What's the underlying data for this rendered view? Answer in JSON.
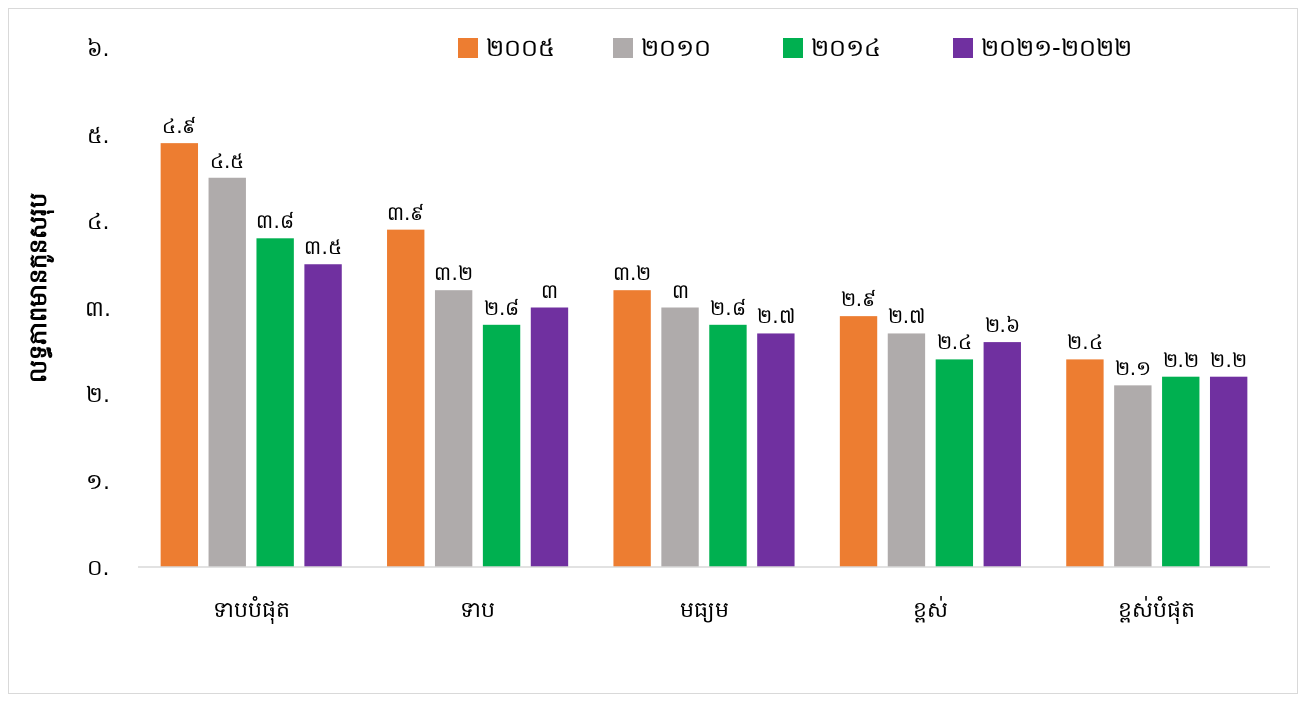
{
  "chart_data": {
    "type": "bar",
    "ylabel": "លទ្ធភាពមានកូនសរុប",
    "categories": [
      "ទាបបំផុត",
      "ទាប",
      "មធ្យម",
      "ខ្ពស់",
      "ខ្ពស់បំផុត"
    ],
    "series": [
      {
        "name": "២០០៥",
        "color": "#ed7d31",
        "values": [
          4.9,
          3.9,
          3.2,
          2.9,
          2.4
        ],
        "value_labels": [
          "៤.៩",
          "៣.៩",
          "៣.២",
          "២.៩",
          "២.៤"
        ]
      },
      {
        "name": "២០១០",
        "color": "#afabab",
        "values": [
          4.5,
          3.2,
          3,
          2.7,
          2.1
        ],
        "value_labels": [
          "៤.៥",
          "៣.២",
          "៣",
          "២.៧",
          "២.១"
        ]
      },
      {
        "name": "២០១៤",
        "color": "#00b050",
        "values": [
          3.8,
          2.8,
          2.8,
          2.4,
          2.2
        ],
        "value_labels": [
          "៣.៨",
          "២.៨",
          "២.៨",
          "២.៤",
          "២.២"
        ]
      },
      {
        "name": "២០២១-២០២២",
        "color": "#7030a0",
        "values": [
          3.5,
          3,
          2.7,
          2.6,
          2.2
        ],
        "value_labels": [
          "៣.៥",
          "៣",
          "២.៧",
          "២.៦",
          "២.២"
        ]
      }
    ],
    "ylim": [
      0,
      6
    ],
    "yticks": [
      {
        "value": 0,
        "label": "០."
      },
      {
        "value": 1,
        "label": "១."
      },
      {
        "value": 2,
        "label": "២."
      },
      {
        "value": 3,
        "label": "៣."
      },
      {
        "value": 4,
        "label": "៤."
      },
      {
        "value": 5,
        "label": "៥."
      },
      {
        "value": 6,
        "label": "៦."
      }
    ],
    "grid": false,
    "legend": "top"
  }
}
